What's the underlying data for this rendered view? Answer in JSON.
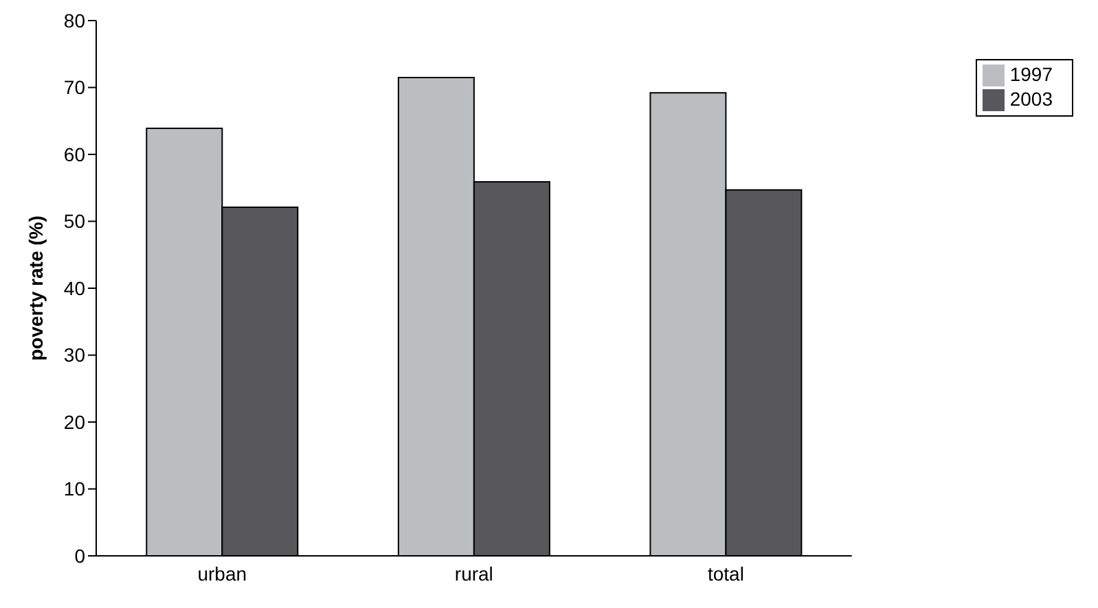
{
  "chart_data": {
    "type": "bar",
    "ylabel": "poverty rate (%)",
    "categories": [
      "urban",
      "rural",
      "total"
    ],
    "series": [
      {
        "name": "1997",
        "color": "#bcbdbf",
        "values": [
          63.9,
          71.5,
          69.2
        ]
      },
      {
        "name": "2003",
        "color": "#58585a",
        "values": [
          52.1,
          55.9,
          54.7
        ]
      }
    ],
    "ylim": [
      0,
      80
    ],
    "yticks": [
      0,
      10,
      20,
      30,
      40,
      50,
      60,
      70,
      80
    ],
    "grid": false,
    "legend": "top right"
  }
}
